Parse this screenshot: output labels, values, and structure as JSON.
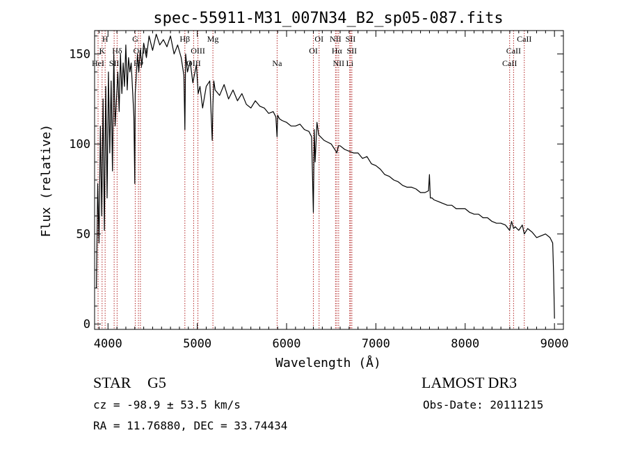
{
  "title": "spec-55911-M31_007N34_B2_sp05-087.fits",
  "chart_data": {
    "type": "line",
    "title": "spec-55911-M31_007N34_B2_sp05-087.fits",
    "xlabel": "Wavelength (Å)",
    "ylabel": "Flux (relative)",
    "xlim": [
      3850,
      9100
    ],
    "ylim": [
      -3,
      163
    ],
    "xticks": [
      4000,
      5000,
      6000,
      7000,
      8000,
      9000
    ],
    "yticks": [
      0,
      50,
      100,
      150
    ],
    "line_color": "#000000",
    "marker_color": "#b22222",
    "series": [
      {
        "name": "flux",
        "x": [
          3870,
          3885,
          3900,
          3915,
          3930,
          3945,
          3960,
          3975,
          3990,
          4005,
          4020,
          4035,
          4050,
          4065,
          4080,
          4095,
          4110,
          4125,
          4140,
          4155,
          4170,
          4185,
          4200,
          4215,
          4230,
          4245,
          4260,
          4275,
          4290,
          4300,
          4305,
          4315,
          4330,
          4345,
          4360,
          4380,
          4400,
          4430,
          4460,
          4500,
          4540,
          4580,
          4620,
          4660,
          4700,
          4740,
          4780,
          4820,
          4850,
          4861,
          4870,
          4890,
          4920,
          4950,
          4990,
          5010,
          5030,
          5060,
          5100,
          5140,
          5167,
          5175,
          5185,
          5200,
          5250,
          5300,
          5350,
          5400,
          5450,
          5500,
          5550,
          5600,
          5650,
          5700,
          5750,
          5800,
          5850,
          5880,
          5893,
          5900,
          5920,
          5950,
          6000,
          6050,
          6100,
          6150,
          6200,
          6250,
          6280,
          6300,
          6310,
          6320,
          6340,
          6360,
          6380,
          6420,
          6460,
          6500,
          6540,
          6563,
          6580,
          6600,
          6650,
          6700,
          6750,
          6800,
          6850,
          6900,
          6950,
          7000,
          7050,
          7100,
          7150,
          7200,
          7250,
          7300,
          7350,
          7400,
          7450,
          7500,
          7550,
          7590,
          7600,
          7610,
          7630,
          7650,
          7700,
          7750,
          7800,
          7850,
          7900,
          7950,
          8000,
          8050,
          8100,
          8150,
          8200,
          8250,
          8300,
          8350,
          8400,
          8450,
          8498,
          8520,
          8542,
          8560,
          8600,
          8640,
          8662,
          8700,
          8750,
          8800,
          8850,
          8900,
          8950,
          8980,
          8990,
          9000
        ],
        "y": [
          20,
          78,
          45,
          110,
          60,
          125,
          52,
          132,
          70,
          140,
          95,
          135,
          85,
          150,
          110,
          125,
          140,
          118,
          150,
          128,
          145,
          132,
          155,
          130,
          148,
          140,
          145,
          130,
          115,
          78,
          128,
          136,
          150,
          140,
          152,
          144,
          156,
          148,
          160,
          152,
          161,
          155,
          158,
          154,
          160,
          150,
          155,
          148,
          138,
          108,
          150,
          140,
          146,
          134,
          144,
          128,
          132,
          120,
          132,
          135,
          102,
          122,
          135,
          130,
          127,
          133,
          125,
          130,
          124,
          128,
          122,
          120,
          124,
          121,
          120,
          117,
          118,
          115,
          104,
          116,
          114,
          113,
          112,
          110,
          110,
          111,
          108,
          107,
          104,
          62,
          108,
          90,
          112,
          105,
          104,
          102,
          101,
          100,
          97,
          95,
          99,
          99,
          97,
          96,
          95,
          95,
          92,
          93,
          89,
          88,
          86,
          83,
          82,
          80,
          79,
          77,
          76,
          76,
          75,
          73,
          73,
          74,
          83,
          70,
          70,
          69,
          68,
          67,
          66,
          66,
          64,
          64,
          64,
          62,
          61,
          61,
          59,
          59,
          57,
          56,
          56,
          55,
          52,
          57,
          53,
          54,
          52,
          55,
          50,
          53,
          51,
          48,
          49,
          50,
          48,
          45,
          28,
          3
        ]
      }
    ],
    "lines": [
      {
        "name": "H",
        "wl": 3968,
        "tier": 0
      },
      {
        "name": "K",
        "wl": 3934,
        "tier": 1
      },
      {
        "name": "Hδ",
        "wl": 4102,
        "tier": 1
      },
      {
        "name": "HeI",
        "wl": 3889,
        "tier": 2
      },
      {
        "name": "SII",
        "wl": 4069,
        "tier": 2
      },
      {
        "name": "G",
        "wl": 4305,
        "tier": 0
      },
      {
        "name": "OIII",
        "wl": 4363,
        "tier": 1
      },
      {
        "name": "Hγ",
        "wl": 4341,
        "tier": 2
      },
      {
        "name": "Hβ",
        "wl": 4861,
        "tier": 0
      },
      {
        "name": "OIII",
        "wl": 5007,
        "tier": 1
      },
      {
        "name": "OIII",
        "wl": 4959,
        "tier": 2
      },
      {
        "name": "Mg",
        "wl": 5175,
        "tier": 0
      },
      {
        "name": "Na",
        "wl": 5894,
        "tier": 2
      },
      {
        "name": "OI",
        "wl": 6364,
        "tier": 0
      },
      {
        "name": "OI",
        "wl": 6300,
        "tier": 1
      },
      {
        "name": "NII",
        "wl": 6548,
        "tier": 0
      },
      {
        "name": "SII",
        "wl": 6716,
        "tier": 0
      },
      {
        "name": "Hα",
        "wl": 6563,
        "tier": 1
      },
      {
        "name": "SII",
        "wl": 6731,
        "tier": 1
      },
      {
        "name": "NII",
        "wl": 6583,
        "tier": 2
      },
      {
        "name": "Li",
        "wl": 6707,
        "tier": 2
      },
      {
        "name": "CaII",
        "wl": 8662,
        "tier": 0
      },
      {
        "name": "CaII",
        "wl": 8542,
        "tier": 1
      },
      {
        "name": "CaII",
        "wl": 8498,
        "tier": 2
      }
    ]
  },
  "info": {
    "object_class": "STAR",
    "subclass": "G5",
    "survey": "LAMOST DR3",
    "cz_text": "cz = -98.9 ± 53.5 km/s",
    "obs_date_text": "Obs-Date: 20111215",
    "radec_text": "RA =  11.76880, DEC =  33.74434"
  }
}
